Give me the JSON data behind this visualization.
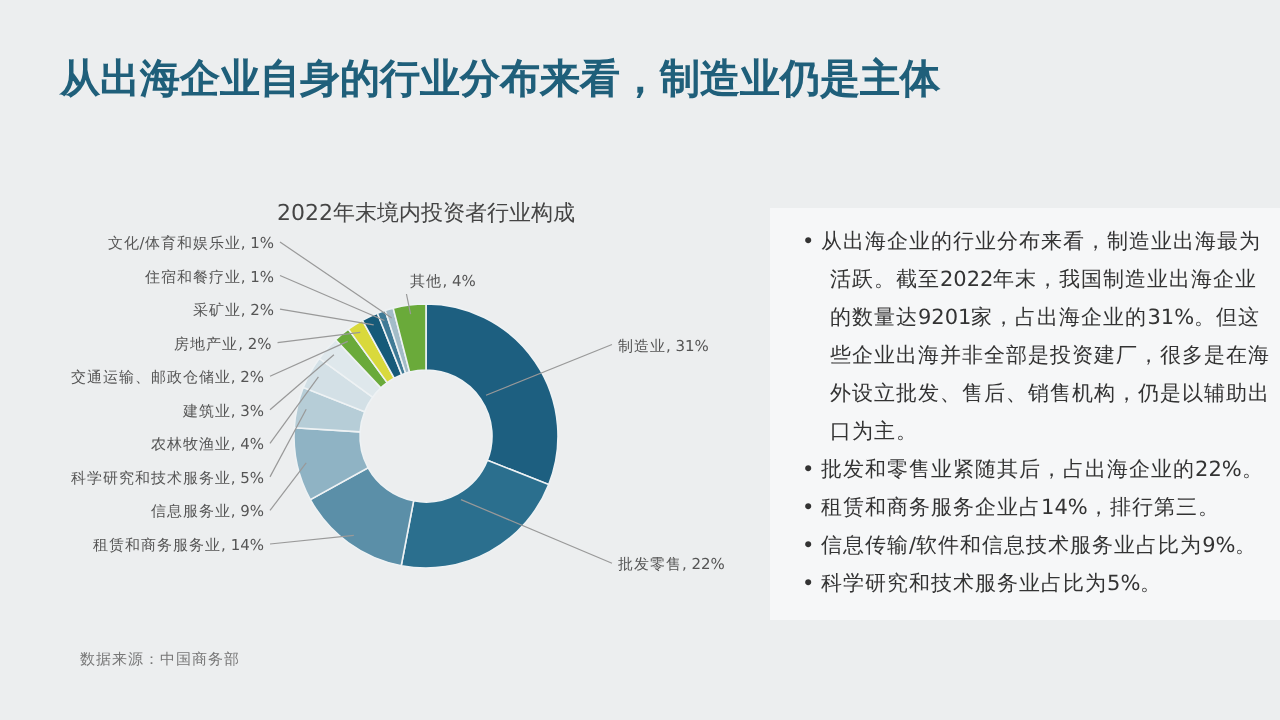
{
  "chart_data": {
    "type": "donut",
    "title": "从出海企业自身的行业分布来看，制造业仍是主体",
    "subtitle": "2022年末境内投资者行业构成",
    "categories": [
      "制造业",
      "批发零售",
      "租赁和商务服务业",
      "信息服务业",
      "科学研究和技术服务业",
      "农林牧渔业",
      "建筑业",
      "交通运输、邮政仓储业",
      "房地产业",
      "采矿业",
      "住宿和餐疗业",
      "文化/体育和娱乐业",
      "其他"
    ],
    "values": [
      31,
      22,
      14,
      9,
      5,
      4,
      3,
      2,
      2,
      2,
      1,
      1,
      4
    ],
    "value_labels": [
      "31%",
      "22%",
      "14%",
      "9%",
      "5%",
      "4%",
      "3%",
      "2%",
      "2%",
      "2%",
      "1%",
      "1%",
      "4%"
    ],
    "colors": [
      "#1d5f80",
      "#2b6f8e",
      "#5b8fa8",
      "#8fb3c4",
      "#b6cdd7",
      "#d3e0e6",
      "#dfe8ec",
      "#6aaa3a",
      "#d9d93c",
      "#165a79",
      "#3f7a96",
      "#a3bcc8",
      "#6aaa3a"
    ],
    "annotations": [
      "• 从出海企业的行业分布来看，制造业出海最为活跃。截至2022年末，我国制造业出海企业的数量达9201家，占出海企业的31%。但这些企业出海并非全部是投资建厂，很多是在海外设立批发、售后、销售机构，仍是以辅助出口为主。",
      "• 批发和零售业紧随其后，占出海企业的22%。",
      "• 租赁和商务服务企业占14%，排行第三。",
      "• 信息传输/软件和信息技术服务业占比为9%。",
      "• 科学研究和技术服务业占比为5%。",
      "数据来源：中国商务部"
    ]
  }
}
